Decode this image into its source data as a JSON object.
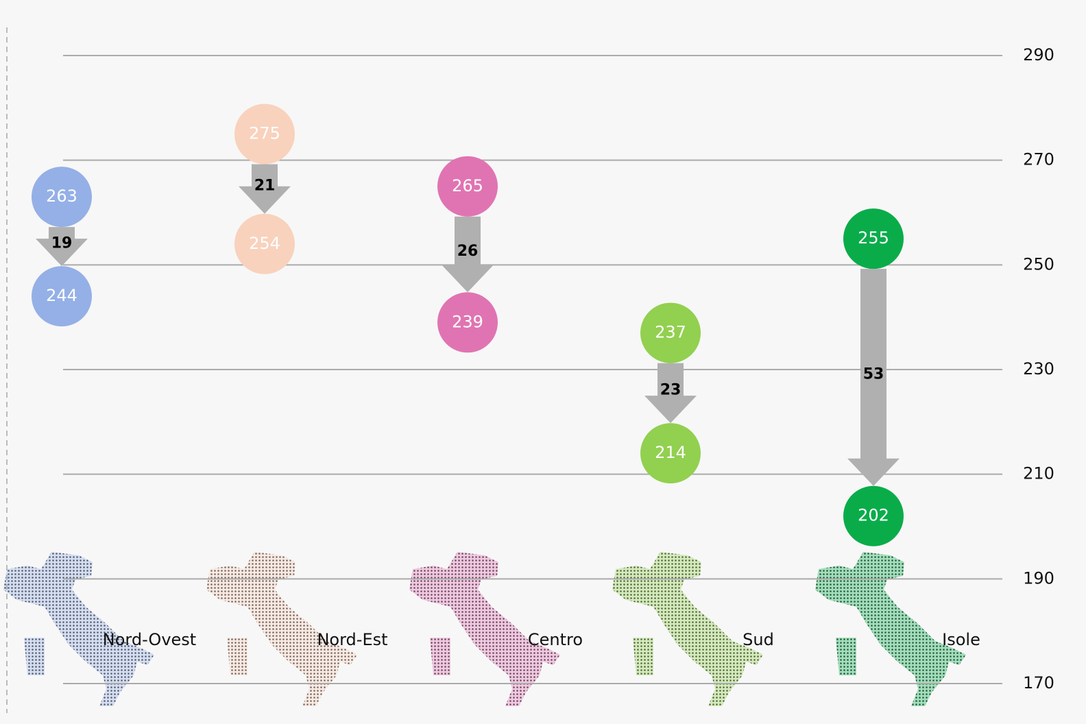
{
  "chart_data": {
    "type": "arrow",
    "categories": [
      "Nord-Ovest",
      "Nord-Est",
      "Centro",
      "Sud",
      "Isole"
    ],
    "start": [
      263,
      275,
      265,
      237,
      255
    ],
    "end": [
      244,
      254,
      239,
      214,
      202
    ],
    "change": [
      19,
      21,
      26,
      23,
      53
    ],
    "colors": [
      "#94b0e6",
      "#f8d2bd",
      "#e074b2",
      "#92d050",
      "#0aac4a"
    ],
    "arrow_color": "#b0b0b0",
    "ylim": [
      170,
      290
    ],
    "yticks": [
      170,
      190,
      210,
      230,
      250,
      270,
      290
    ],
    "grid": true
  }
}
